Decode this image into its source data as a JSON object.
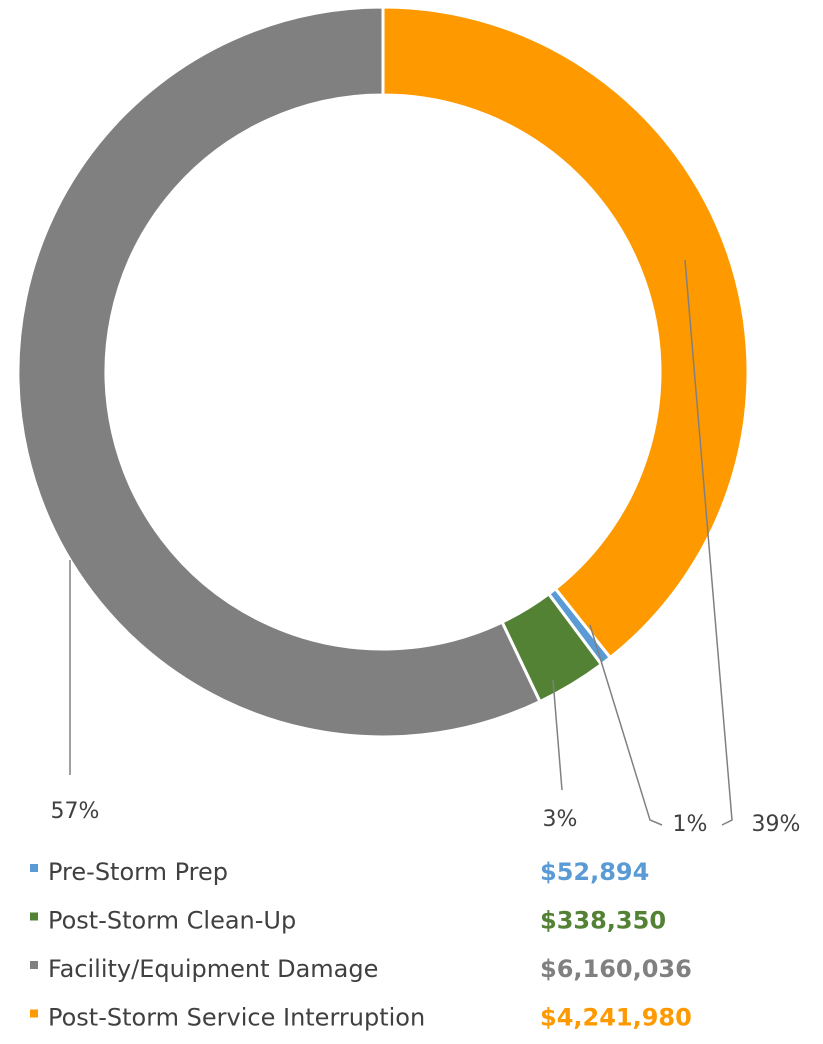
{
  "chart_data": {
    "type": "donut",
    "categories": [
      "Pre-Storm Prep",
      "Post-Storm Clean-Up",
      "Facility/Equipment Damage",
      "Post-Storm Service Interruption"
    ],
    "values": [
      52894,
      338350,
      6160036,
      4241980
    ],
    "value_labels": [
      "$52,894",
      "$338,350",
      "$6,160,036",
      "$4,241,980"
    ],
    "percent_labels": [
      "1%",
      "3%",
      "57%",
      "39%"
    ],
    "colors": [
      "#5b9bd5",
      "#548235",
      "#808080",
      "#ff9900"
    ],
    "legend": "bottom"
  }
}
